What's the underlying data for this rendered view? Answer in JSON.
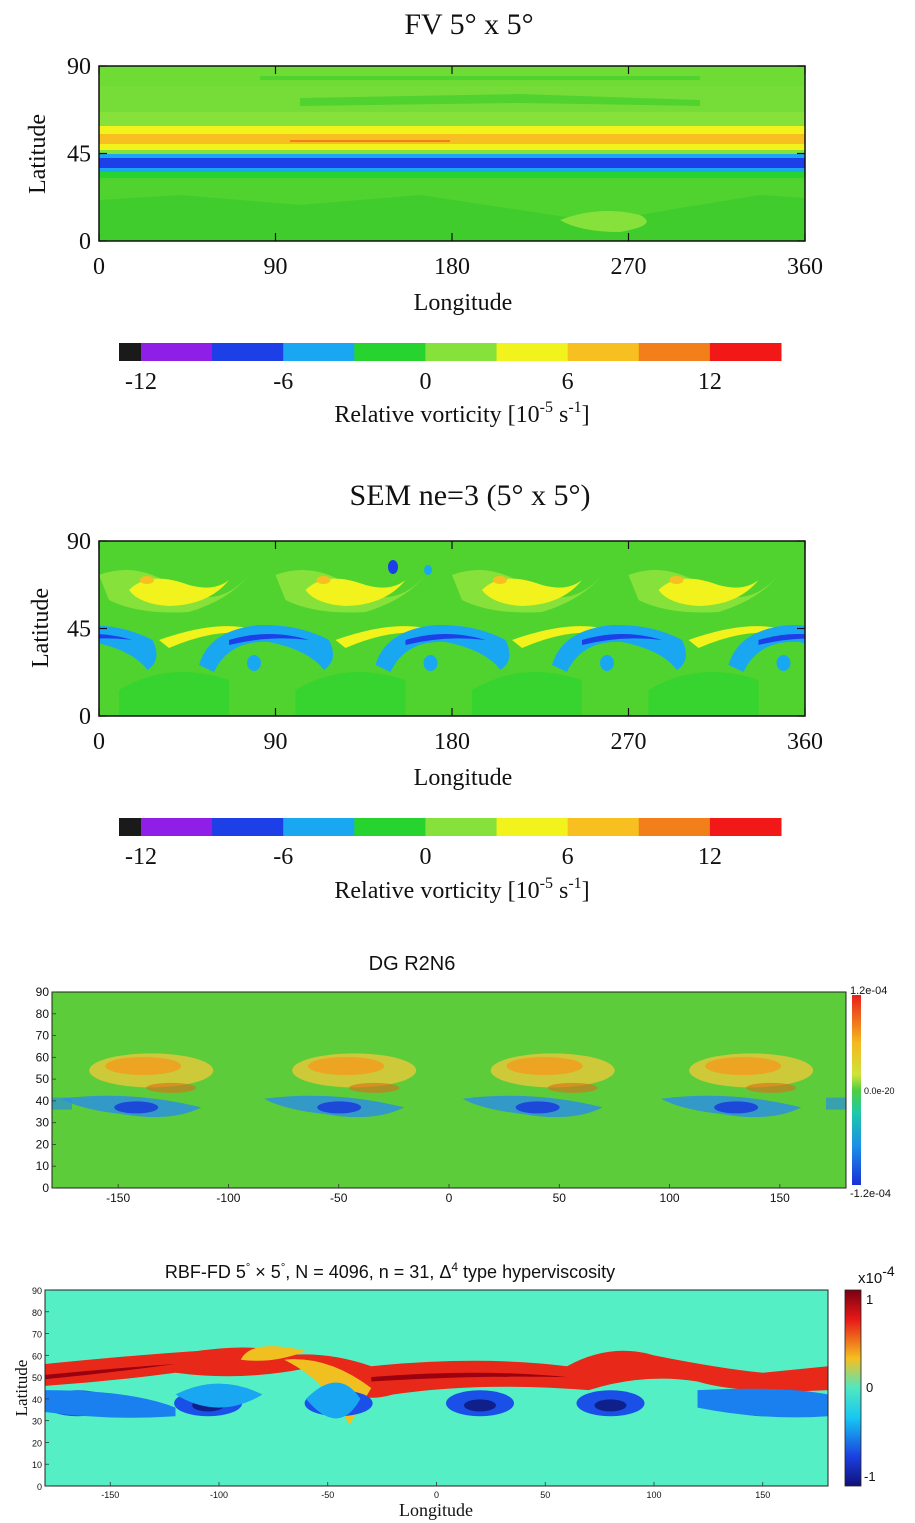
{
  "chart_data": [
    {
      "type": "heatmap",
      "title": "FV 5° x 5°",
      "xlabel": "Longitude",
      "ylabel": "Latitude",
      "xlim": [
        0,
        360
      ],
      "ylim": [
        0,
        90
      ],
      "xticks": [
        "0",
        "90",
        "180",
        "270",
        "360"
      ],
      "yticks": [
        "0",
        "45",
        "90"
      ],
      "pattern": "zonal bands: strong positive band near 48°N, strong negative band near 40°N, weak values elsewhere",
      "colorbar": {
        "label_text": "Relative vorticity [10",
        "label_exp": "-5",
        "label_unit": " s",
        "label_unit_exp": "-1",
        "label_close": "]",
        "ticks": [
          "-12",
          "-6",
          "0",
          "6",
          "12"
        ],
        "levels": [
          -15,
          -12,
          -9,
          -6,
          -3,
          0,
          3,
          6,
          9,
          12,
          15
        ],
        "colors": [
          "#1a1a1a",
          "#8f1fe6",
          "#1c3fe8",
          "#1aa7f2",
          "#27d42f",
          "#86e23a",
          "#f2f21c",
          "#f7bf1f",
          "#f37f1a",
          "#f21818"
        ]
      }
    },
    {
      "type": "heatmap",
      "title": "SEM ne=3 (5° x 5°)",
      "xlabel": "Longitude",
      "ylabel": "Latitude",
      "xlim": [
        0,
        360
      ],
      "ylim": [
        0,
        90
      ],
      "xticks": [
        "0",
        "90",
        "180",
        "270",
        "360"
      ],
      "yticks": [
        "0",
        "45",
        "90"
      ],
      "pattern": "four-wave pattern: positive maxima near 60°N, negative arcs near 40°N at longitudes ~30, 120, 210, 300",
      "colorbar": {
        "label_text": "Relative vorticity [10",
        "label_exp": "-5",
        "label_unit": " s",
        "label_unit_exp": "-1",
        "label_close": "]",
        "ticks": [
          "-12",
          "-6",
          "0",
          "6",
          "12"
        ],
        "levels": [
          -15,
          -12,
          -9,
          -6,
          -3,
          0,
          3,
          6,
          9,
          12,
          15
        ],
        "colors": [
          "#1a1a1a",
          "#8f1fe6",
          "#1c3fe8",
          "#1aa7f2",
          "#27d42f",
          "#86e23a",
          "#f2f21c",
          "#f7bf1f",
          "#f37f1a",
          "#f21818"
        ]
      }
    },
    {
      "type": "heatmap",
      "title": "DG R2N6",
      "xlim": [
        -180,
        180
      ],
      "ylim": [
        0,
        90
      ],
      "xticks": [
        "-150",
        "-100",
        "-50",
        "0",
        "50",
        "100",
        "150"
      ],
      "yticks": [
        "0",
        "10",
        "20",
        "30",
        "40",
        "50",
        "60",
        "70",
        "80",
        "90"
      ],
      "colorbar": {
        "top": "1.2e-04",
        "mid": "0.0e-20",
        "bottom": "-1.2e-04",
        "range": [
          -0.00012,
          0.00012
        ]
      }
    },
    {
      "type": "heatmap",
      "title_prefix": "RBF-FD  5",
      "title_deg1": "°",
      "title_mid": " × 5",
      "title_deg2": "°",
      "title_rest": ", N = 4096, n = 31, ",
      "title_delta": "Δ",
      "title_exp": "4",
      "title_suffix": " type hyperviscosity",
      "xlabel": "Longitude",
      "ylabel": "Latitude",
      "xlim": [
        -180,
        180
      ],
      "ylim": [
        0,
        90
      ],
      "xticks": [
        "-150",
        "-100",
        "-50",
        "0",
        "50",
        "100",
        "150"
      ],
      "yticks": [
        "0",
        "10",
        "20",
        "30",
        "40",
        "50",
        "60",
        "70",
        "80",
        "90"
      ],
      "colorbar": {
        "multiplier": "x10",
        "multiplier_exp": "-4",
        "top": "1",
        "mid": "0",
        "bottom": "-1",
        "range": [
          -1,
          1
        ]
      }
    }
  ]
}
